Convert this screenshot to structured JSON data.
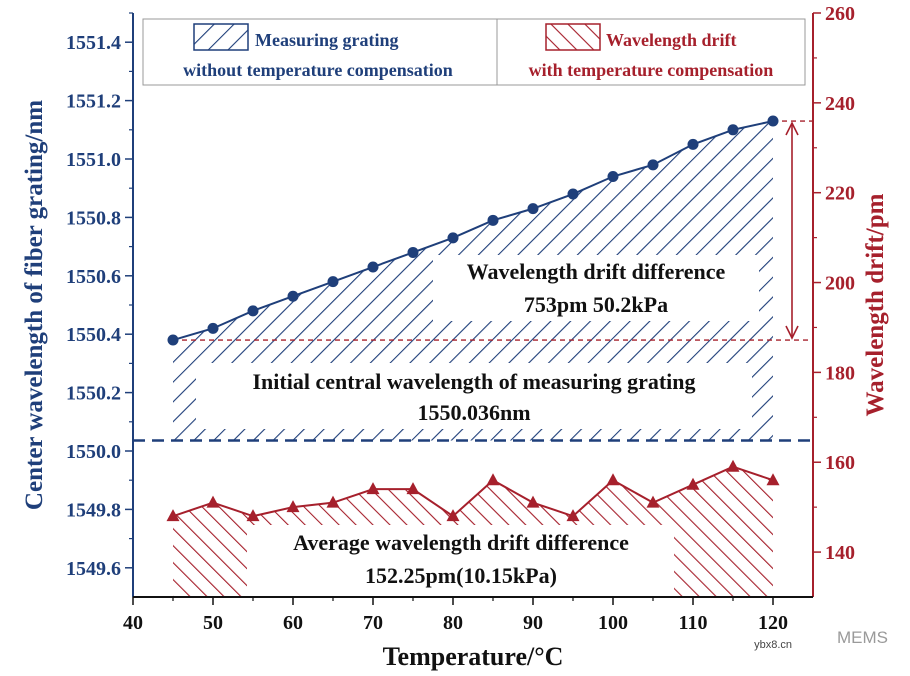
{
  "chart_data": {
    "type": "line",
    "x": [
      45,
      50,
      55,
      60,
      65,
      70,
      75,
      80,
      85,
      90,
      95,
      100,
      105,
      110,
      115,
      120
    ],
    "xlabel": "Temperature/°C",
    "xlim": [
      40,
      125
    ],
    "xticks": [
      40,
      50,
      60,
      70,
      80,
      90,
      100,
      110,
      120
    ],
    "left_axis": {
      "label": "Center wavelength of fiber grating/nm",
      "ylim": [
        1549.5,
        1551.5
      ],
      "ticks": [
        "1549.6",
        "1549.8",
        "1550.0",
        "1550.2",
        "1550.4",
        "1550.6",
        "1550.8",
        "1551.0",
        "1551.2",
        "1551.4"
      ],
      "color": "#1f3f7a"
    },
    "right_axis": {
      "label": "Wavelength drift/pm",
      "ylim": [
        130,
        260
      ],
      "ticks": [
        "140",
        "160",
        "180",
        "200",
        "220",
        "240",
        "260"
      ],
      "color": "#a6202c"
    },
    "series": [
      {
        "name": "Measuring grating without temperature compensation",
        "axis": "left",
        "color": "#1f3f7a",
        "marker": "circle",
        "values": [
          1550.38,
          1550.42,
          1550.48,
          1550.53,
          1550.58,
          1550.63,
          1550.68,
          1550.73,
          1550.79,
          1550.83,
          1550.88,
          1550.94,
          1550.98,
          1551.05,
          1551.1,
          1551.13
        ]
      },
      {
        "name": "Wavelength drift with temperature compensation",
        "axis": "right",
        "color": "#a6202c",
        "marker": "triangle",
        "values": [
          148,
          151,
          148,
          150,
          151,
          154,
          154,
          148,
          156,
          151,
          148,
          156,
          151,
          155,
          159,
          156
        ]
      }
    ],
    "legend": [
      {
        "line1": "Measuring grating",
        "line2": "without temperature compensation"
      },
      {
        "line1": "Wavelength drift",
        "line2": "with temperature compensation"
      }
    ],
    "reference_lines": {
      "baseline_value": 1550.036,
      "start_value": 1550.38,
      "end_value": 1551.13
    },
    "annotations": {
      "drift_diff_line1": "Wavelength drift difference",
      "drift_diff_line2": "753pm  50.2kPa",
      "initial_line1": "Initial central wavelength of measuring grating",
      "initial_line2": "1550.036nm",
      "avg_line1": "Average wavelength drift difference",
      "avg_line2": "152.25pm(10.15kPa)"
    }
  },
  "watermark": {
    "brand": "MEMS",
    "site": "ybx8.cn"
  }
}
